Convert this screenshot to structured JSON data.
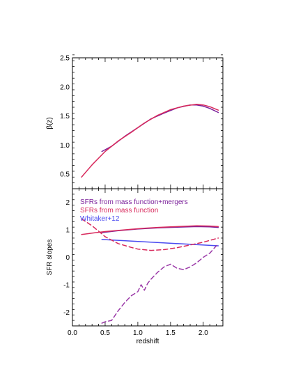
{
  "chart_data": [
    {
      "panel": "top",
      "type": "line",
      "title": "",
      "xlabel": "",
      "ylabel": "β(z)",
      "xlim": [
        0.0,
        2.3
      ],
      "ylim": [
        0.25,
        2.5
      ],
      "yticks": [
        0.5,
        1.0,
        1.5,
        2.0,
        2.5
      ],
      "ytick_labels": [
        "0.5",
        "1.0",
        "1.5",
        "2.0",
        "2.5"
      ],
      "show_xtick_labels": false,
      "series": [
        {
          "color": "#7a1f9a",
          "dash": "solid",
          "x": [
            0.45,
            0.6,
            0.8,
            1.0,
            1.2,
            1.4,
            1.6,
            1.8,
            1.9,
            2.0,
            2.1,
            2.23
          ],
          "y": [
            0.89,
            0.98,
            1.15,
            1.3,
            1.45,
            1.55,
            1.64,
            1.69,
            1.69,
            1.67,
            1.63,
            1.56
          ]
        },
        {
          "color": "#d8295c",
          "dash": "solid",
          "x": [
            0.14,
            0.3,
            0.5,
            0.7,
            0.9,
            1.1,
            1.3,
            1.5,
            1.7,
            1.9,
            2.0,
            2.1,
            2.23
          ],
          "y": [
            0.45,
            0.66,
            0.89,
            1.07,
            1.22,
            1.38,
            1.51,
            1.61,
            1.67,
            1.7,
            1.69,
            1.66,
            1.6
          ]
        }
      ]
    },
    {
      "panel": "bottom",
      "type": "line",
      "title": "",
      "xlabel": "redshift",
      "ylabel": "SFR slopes",
      "xlim": [
        0.0,
        2.3
      ],
      "ylim": [
        -2.5,
        2.5
      ],
      "xticks": [
        0.0,
        0.5,
        1.0,
        1.5,
        2.0
      ],
      "xtick_labels": [
        "0.0",
        "0.5",
        "1.0",
        "1.5",
        "2.0"
      ],
      "yticks": [
        -2,
        -1,
        0,
        1,
        2
      ],
      "ytick_labels": [
        "-2",
        "-1",
        "0",
        "1",
        "2"
      ],
      "legend": {
        "placement": "top-left",
        "entries": [
          {
            "label": "SFRs from mass function+mergers",
            "color": "#7a1f9a"
          },
          {
            "label": "SFRs from mass function",
            "color": "#d8295c"
          },
          {
            "label": "Whitaker+12",
            "color": "#4a4af0"
          }
        ]
      },
      "series": [
        {
          "color": "#7a1f9a",
          "dash": "solid",
          "x": [
            0.45,
            0.7,
            1.0,
            1.3,
            1.6,
            1.9,
            2.1,
            2.23
          ],
          "y": [
            0.9,
            0.97,
            1.03,
            1.07,
            1.1,
            1.12,
            1.11,
            1.09
          ]
        },
        {
          "color": "#d8295c",
          "dash": "solid",
          "x": [
            0.14,
            0.3,
            0.5,
            0.7,
            0.9,
            1.1,
            1.3,
            1.5,
            1.7,
            1.9,
            2.1,
            2.23
          ],
          "y": [
            0.83,
            0.88,
            0.94,
            0.98,
            1.02,
            1.06,
            1.09,
            1.11,
            1.13,
            1.15,
            1.14,
            1.12
          ]
        },
        {
          "color": "#4a4af0",
          "dash": "solid",
          "x": [
            0.45,
            2.23
          ],
          "y": [
            0.65,
            0.42
          ]
        },
        {
          "color": "#d8295c",
          "dash": "dashed",
          "x": [
            0.14,
            0.3,
            0.5,
            0.7,
            0.9,
            1.0,
            1.2,
            1.4,
            1.6,
            1.8,
            2.0,
            2.23
          ],
          "y": [
            1.4,
            1.15,
            0.75,
            0.5,
            0.36,
            0.3,
            0.25,
            0.28,
            0.35,
            0.45,
            0.55,
            0.7
          ]
        },
        {
          "color": "#9b3aa8",
          "dash": "dashed",
          "x": [
            0.45,
            0.5,
            0.6,
            0.7,
            0.8,
            0.9,
            1.0,
            1.05,
            1.1,
            1.15,
            1.2,
            1.3,
            1.4,
            1.5,
            1.6,
            1.7,
            1.8,
            1.9,
            2.0,
            2.1,
            2.23
          ],
          "y": [
            -2.4,
            -2.35,
            -2.3,
            -1.95,
            -1.65,
            -1.4,
            -1.25,
            -1.0,
            -1.2,
            -0.95,
            -0.8,
            -0.55,
            -0.35,
            -0.25,
            -0.4,
            -0.45,
            -0.35,
            -0.2,
            0.0,
            0.15,
            0.5
          ]
        }
      ]
    }
  ]
}
